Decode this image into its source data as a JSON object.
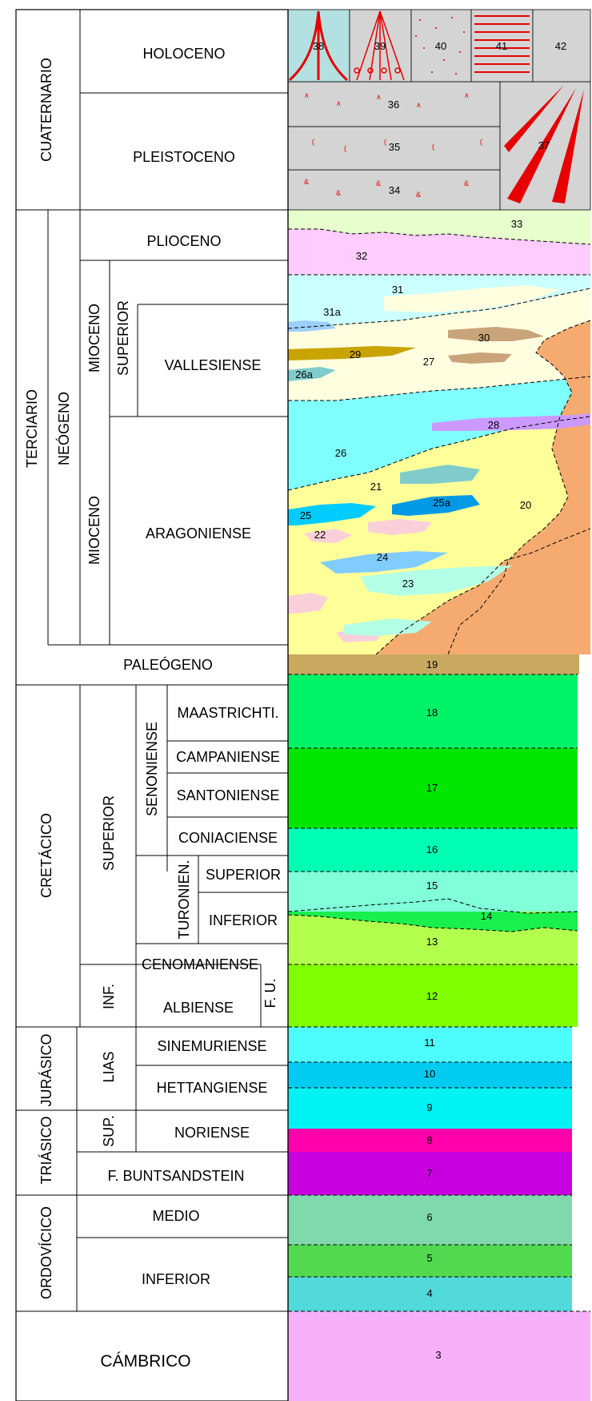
{
  "periods": {
    "cuaternario": "CUATERNARIO",
    "terciario": "TERCIARIO",
    "cretacico": "CRETÁCICO",
    "jurasico": "JURÁSICO",
    "triasico": "TRIÁSICO",
    "ordovicico": "ORDOVÍCICO",
    "cambrico": "CÁMBRICO"
  },
  "subdivisions": {
    "neogeno": "NEÓGENO",
    "mioceno": "MIOCENO",
    "superior": "SUPERIOR",
    "inferior": "INFERIOR",
    "senoniense": "SENONIENSE",
    "turonien": "TURONIEN.",
    "inf": "INF.",
    "fu": "F. U.",
    "lias": "LIAS",
    "sup": "SUP."
  },
  "stages": {
    "holoceno": "HOLOCENO",
    "pleistoceno": "PLEISTOCENO",
    "plioceno": "PLIOCENO",
    "vallesiense": "VALLESIENSE",
    "aragoniense": "ARAGONIENSE",
    "paleogeno": "PALEÓGENO",
    "maastrichti": "MAASTRICHTI.",
    "campaniense": "CAMPANIENSE",
    "santoniense": "SANTONIENSE",
    "coniaciense": "CONIACIENSE",
    "superior": "SUPERIOR",
    "inferior": "INFERIOR",
    "cenomaniense": "CENOMANIENSE",
    "albiense": "ALBIENSE",
    "sinemuriense": "SINEMURIENSE",
    "hettangiense": "HETTANGIENSE",
    "noriense": "NORIENSE",
    "buntsandstein": "F. BUNTSANDSTEIN",
    "medio": "MEDIO",
    "ord_inferior": "INFERIOR"
  },
  "unit_numbers": [
    "3",
    "4",
    "5",
    "6",
    "7",
    "8",
    "9",
    "10",
    "11",
    "12",
    "13",
    "14",
    "15",
    "16",
    "17",
    "18",
    "19",
    "20",
    "21",
    "22",
    "23",
    "24",
    "25",
    "25a",
    "26",
    "26a",
    "27",
    "28",
    "29",
    "30",
    "31",
    "31a",
    "32",
    "33",
    "34",
    "35",
    "36",
    "37",
    "38",
    "39",
    "40",
    "41",
    "42"
  ],
  "unit_colors": {
    "u3": "#f7b0f7",
    "u4": "#52d9d9",
    "u5": "#52d94f",
    "u6": "#80d9ad",
    "u7": "#c800e0",
    "u8": "#ff00aa",
    "u9": "#00f2f2",
    "u10": "#00ccf2",
    "u11": "#4dfcfc",
    "u12": "#80ff00",
    "u13": "#b3ff4d",
    "u14": "#19f04d",
    "u15": "#80ffd9",
    "u16": "#00ffb3",
    "u17": "#00e600",
    "u18": "#00f266",
    "u19": "#c9a860",
    "u20": "#f5aa70",
    "u21": "#ffff99",
    "u22": "#f9d0da",
    "u23": "#b3ffe6",
    "u24": "#80ccff",
    "u25": "#00ccff",
    "u25a": "#0099e6",
    "u26": "#80ffff",
    "u26a": "#80cccc",
    "u27": "#ffffe0",
    "u28": "#cc99ff",
    "u29": "#c9a300",
    "u30": "#c9a37a",
    "u31": "#ccffff",
    "u32": "#ffccff",
    "u33": "#e6ffcc",
    "quaternary": "#d4d4d4",
    "teal": "#b3e0e0",
    "symbol_red": "#e60000"
  }
}
